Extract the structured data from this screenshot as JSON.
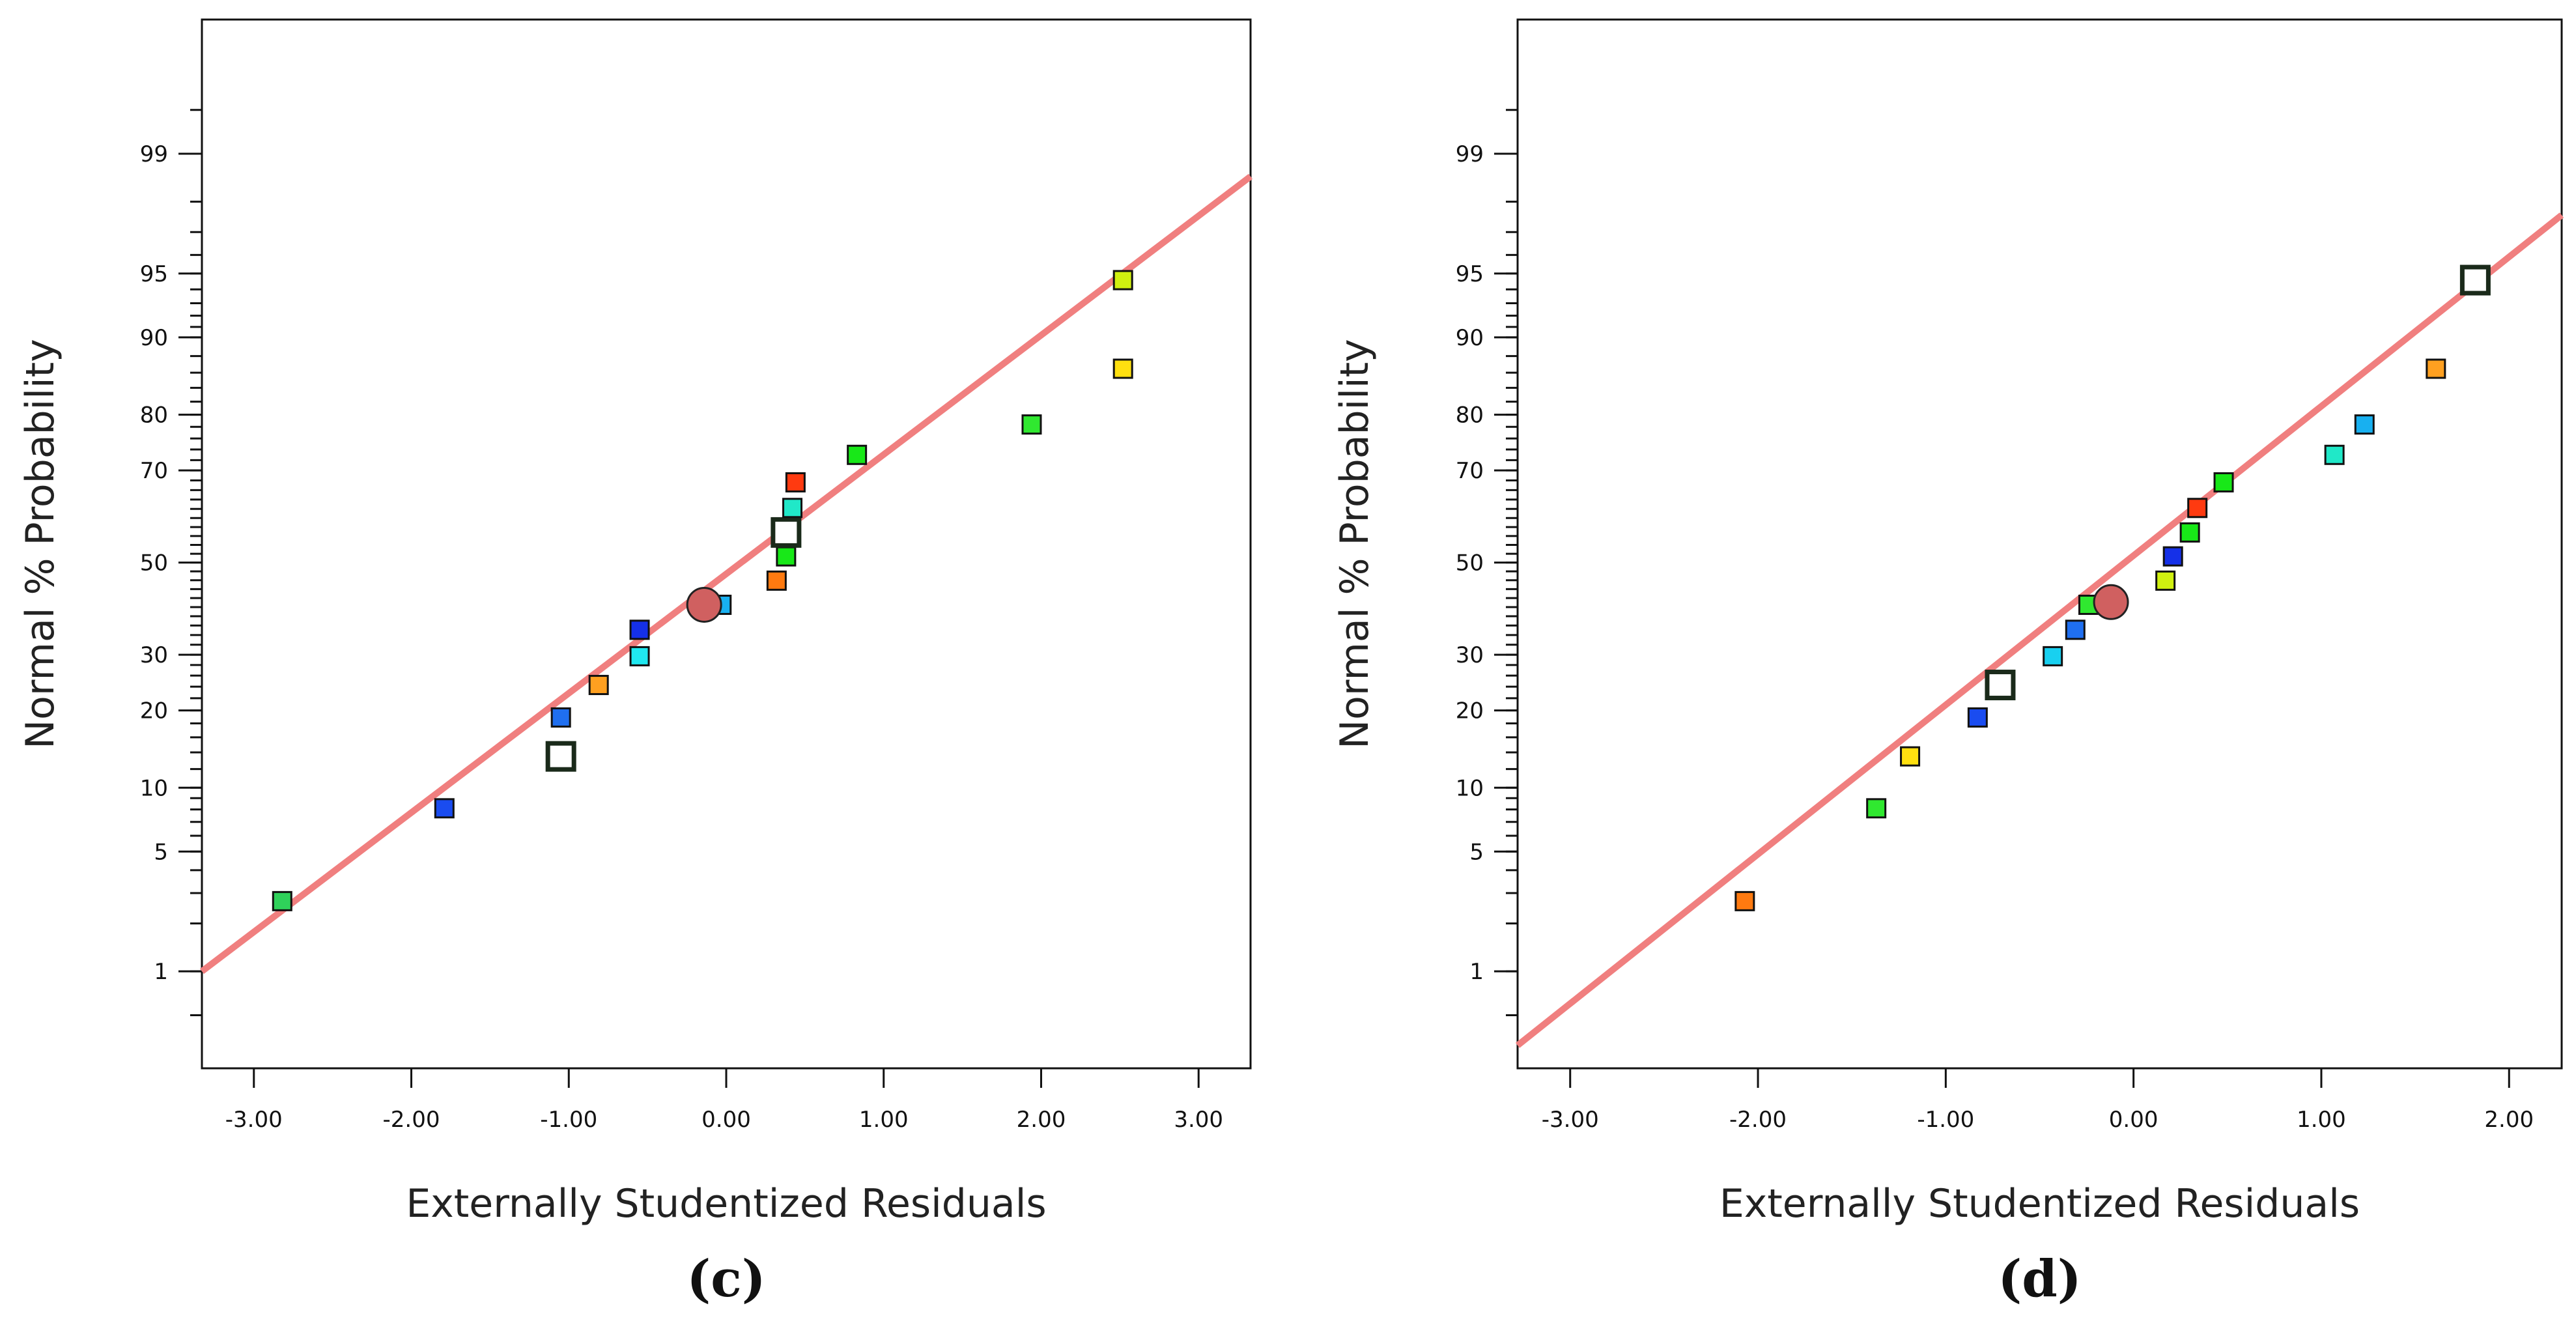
{
  "chart_data": [
    {
      "type": "scatter",
      "panel_label": "(c)",
      "xlabel": "Externally Studentized Residuals",
      "ylabel": "Normal % Probability",
      "xlim": [
        -3.33,
        3.33
      ],
      "x_ticks": [
        -3,
        -2,
        -1,
        0,
        1,
        2,
        3
      ],
      "x_tick_labels": [
        "-3.00",
        "-2.00",
        "-1.00",
        "0.00",
        "1.00",
        "2.00",
        "3.00"
      ],
      "y_scale": "normal-probability",
      "ylim": [
        0.2,
        99.9
      ],
      "y_tick_labels": [
        "1",
        "5",
        "10",
        "20",
        "30",
        "50",
        "70",
        "80",
        "90",
        "95",
        "99"
      ],
      "reference_line": {
        "x1": -3.33,
        "y1": 1.0,
        "x2": 3.33,
        "y2": 98.6,
        "color": "#f07f7f"
      },
      "points": [
        {
          "x": -2.82,
          "p": 2.7,
          "color": "#2fd15a"
        },
        {
          "x": -1.79,
          "p": 8.1,
          "color": "#1a4cf0"
        },
        {
          "x": -1.05,
          "p": 13.5,
          "color": "#ffffff",
          "outlined": true
        },
        {
          "x": -1.05,
          "p": 18.9,
          "color": "#1f6ff0"
        },
        {
          "x": -0.81,
          "p": 24.3,
          "color": "#ffa020"
        },
        {
          "x": -0.55,
          "p": 29.7,
          "color": "#20e8f0"
        },
        {
          "x": -0.55,
          "p": 35.1,
          "color": "#1530e8"
        },
        {
          "x": -0.03,
          "p": 40.5,
          "color": "#18b0f0"
        },
        {
          "x": 0.32,
          "p": 45.9,
          "color": "#ff7a10"
        },
        {
          "x": 0.38,
          "p": 51.4,
          "color": "#18e818"
        },
        {
          "x": 0.38,
          "p": 56.8,
          "color": "#ffffff",
          "outlined": true
        },
        {
          "x": 0.42,
          "p": 62.2,
          "color": "#20e8c8"
        },
        {
          "x": 0.44,
          "p": 67.6,
          "color": "#ff3a10"
        },
        {
          "x": 0.83,
          "p": 73.0,
          "color": "#18e818"
        },
        {
          "x": 1.94,
          "p": 78.4,
          "color": "#30e830"
        },
        {
          "x": 2.52,
          "p": 86.5,
          "color": "#ffe010"
        },
        {
          "x": 2.52,
          "p": 94.6,
          "color": "#d0f010"
        }
      ],
      "highlight": {
        "x": -0.14,
        "p": 40.5,
        "color": "#d06060"
      }
    },
    {
      "type": "scatter",
      "panel_label": "(d)",
      "xlabel": "Externally Studentized Residuals",
      "ylabel": "Normal % Probability",
      "xlim": [
        -3.28,
        2.28
      ],
      "x_ticks": [
        -3,
        -2,
        -1,
        0,
        1,
        2
      ],
      "x_tick_labels": [
        "-3.00",
        "-2.00",
        "-1.00",
        "0.00",
        "1.00",
        "2.00"
      ],
      "y_scale": "normal-probability",
      "ylim": [
        0.2,
        99.9
      ],
      "y_tick_labels": [
        "1",
        "5",
        "10",
        "20",
        "30",
        "50",
        "70",
        "80",
        "90",
        "95",
        "99"
      ],
      "reference_line": {
        "x1": -3.28,
        "y1": 0.3,
        "x2": 2.28,
        "y2": 97.6,
        "color": "#f07f7f"
      },
      "points": [
        {
          "x": -2.07,
          "p": 2.7,
          "color": "#ff7a10"
        },
        {
          "x": -1.37,
          "p": 8.1,
          "color": "#30e830"
        },
        {
          "x": -1.19,
          "p": 13.5,
          "color": "#ffe010"
        },
        {
          "x": -0.83,
          "p": 18.9,
          "color": "#1a4cf0"
        },
        {
          "x": -0.71,
          "p": 24.3,
          "color": "#ffffff",
          "outlined": true
        },
        {
          "x": -0.43,
          "p": 29.7,
          "color": "#18d0f0"
        },
        {
          "x": -0.31,
          "p": 35.1,
          "color": "#1f6ff0"
        },
        {
          "x": -0.24,
          "p": 40.5,
          "color": "#30e830"
        },
        {
          "x": 0.17,
          "p": 45.9,
          "color": "#d0f010"
        },
        {
          "x": 0.21,
          "p": 51.4,
          "color": "#1530e8"
        },
        {
          "x": 0.3,
          "p": 56.8,
          "color": "#18e818"
        },
        {
          "x": 0.34,
          "p": 62.2,
          "color": "#ff3a10"
        },
        {
          "x": 0.48,
          "p": 67.6,
          "color": "#18e818"
        },
        {
          "x": 1.07,
          "p": 73.0,
          "color": "#20e8c8"
        },
        {
          "x": 1.23,
          "p": 78.4,
          "color": "#18b0f0"
        },
        {
          "x": 1.61,
          "p": 86.5,
          "color": "#ffa020"
        },
        {
          "x": 1.82,
          "p": 94.6,
          "color": "#ffffff",
          "outlined": true
        }
      ],
      "highlight": {
        "x": -0.12,
        "p": 41.1,
        "color": "#d06060"
      }
    }
  ]
}
